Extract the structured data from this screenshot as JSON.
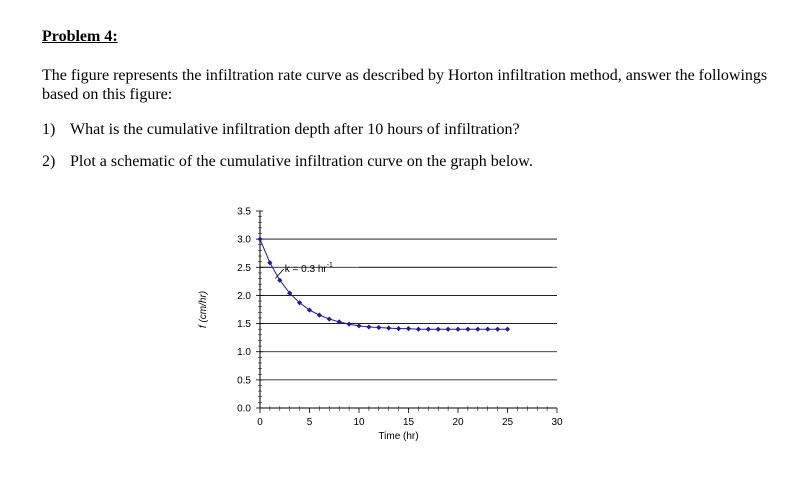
{
  "problem": {
    "title": "Problem 4:",
    "intro": "The figure represents the infiltration rate curve as described by Horton infiltration method, answer the followings based on this figure:",
    "questions": [
      {
        "num": "1)",
        "text": "What is the cumulative infiltration depth after 10 hours of infiltration?"
      },
      {
        "num": "2)",
        "text": "Plot a schematic of the cumulative infiltration curve on the graph below."
      }
    ]
  },
  "chart_data": {
    "type": "line",
    "xlabel": "Time (hr)",
    "ylabel": "f (cm/hr)",
    "xlim": [
      0,
      30
    ],
    "ylim": [
      0,
      3.5
    ],
    "xticks": [
      0,
      5,
      10,
      15,
      20,
      25,
      30
    ],
    "yticks": [
      "0.0",
      "0.5",
      "1.0",
      "1.5",
      "2.0",
      "2.5",
      "3.0",
      "3.5"
    ],
    "gridlines_y": [
      0.5,
      1.0,
      1.5,
      2.0,
      2.5,
      3.0
    ],
    "annotation": {
      "text": "k = 0.3 hr",
      "superscript": "-1"
    },
    "series": [
      {
        "color": "#1f1f8f",
        "x": [
          0,
          1,
          2,
          3,
          4,
          5,
          6,
          7,
          8,
          9,
          10,
          11,
          12,
          13,
          14,
          15,
          16,
          17,
          18,
          19,
          20,
          21,
          22,
          23,
          24,
          25
        ],
        "y": [
          3.0,
          2.58,
          2.27,
          2.04,
          1.87,
          1.74,
          1.65,
          1.58,
          1.53,
          1.49,
          1.46,
          1.44,
          1.43,
          1.42,
          1.41,
          1.41,
          1.4,
          1.4,
          1.4,
          1.4,
          1.4,
          1.4,
          1.4,
          1.4,
          1.4,
          1.4
        ]
      }
    ]
  }
}
